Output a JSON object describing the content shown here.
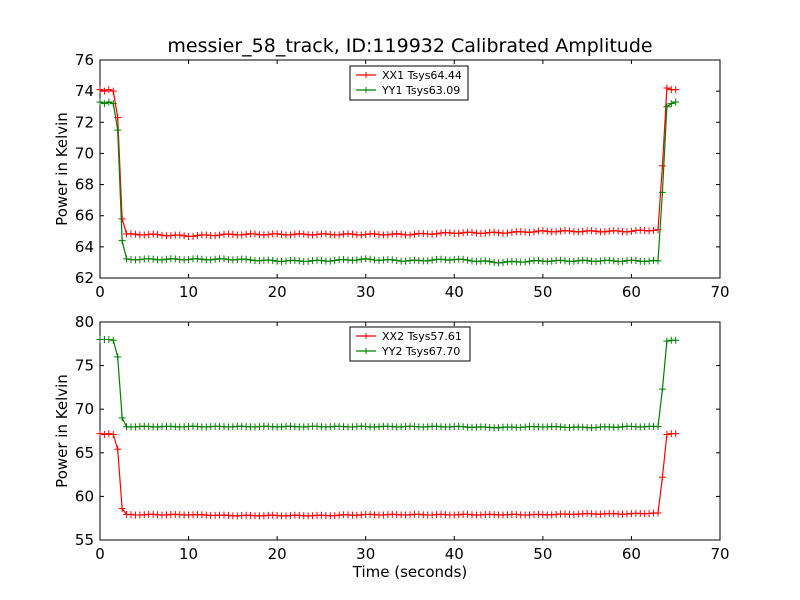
{
  "title": "messier_58_track, ID:119932 Calibrated Amplitude",
  "chart_data": [
    {
      "type": "line",
      "ylabel": "Power in Kelvin",
      "xlabel": "",
      "xlim": [
        0,
        70
      ],
      "ylim": [
        62,
        76
      ],
      "x_ticks": [
        "0",
        "10",
        "20",
        "30",
        "40",
        "50",
        "60",
        "70"
      ],
      "y_ticks": [
        "62",
        "64",
        "66",
        "68",
        "70",
        "72",
        "74",
        "76"
      ],
      "legend_position": "top-center",
      "series": [
        {
          "name": "XX1 Tsys64.44",
          "color": "#ff0000",
          "x": [
            0,
            0.5,
            1,
            1.5,
            2,
            2.5,
            3,
            5,
            10,
            15,
            20,
            25,
            30,
            35,
            40,
            45,
            50,
            55,
            60,
            63,
            63.5,
            64,
            64.5,
            65
          ],
          "y": [
            74.1,
            74.0,
            74.1,
            74.0,
            72.3,
            65.8,
            64.8,
            64.8,
            64.7,
            64.8,
            64.8,
            64.8,
            64.8,
            64.8,
            64.9,
            64.9,
            65.0,
            65.0,
            65.0,
            65.1,
            69.2,
            74.2,
            74.1,
            74.1
          ]
        },
        {
          "name": "YY1 Tsys63.09",
          "color": "#008000",
          "x": [
            0,
            0.5,
            1,
            1.5,
            2,
            2.5,
            3,
            5,
            10,
            15,
            20,
            25,
            30,
            35,
            40,
            45,
            50,
            55,
            60,
            63,
            63.5,
            64,
            64.5,
            65
          ],
          "y": [
            73.3,
            73.2,
            73.3,
            73.2,
            71.5,
            64.4,
            63.2,
            63.2,
            63.2,
            63.2,
            63.1,
            63.1,
            63.2,
            63.1,
            63.2,
            63.0,
            63.1,
            63.1,
            63.1,
            63.1,
            67.5,
            73.0,
            73.2,
            73.3
          ]
        }
      ]
    },
    {
      "type": "line",
      "ylabel": "Power in Kelvin",
      "xlabel": "Time (seconds)",
      "xlim": [
        0,
        70
      ],
      "ylim": [
        55,
        80
      ],
      "x_ticks": [
        "0",
        "10",
        "20",
        "30",
        "40",
        "50",
        "60",
        "70"
      ],
      "y_ticks": [
        "55",
        "60",
        "65",
        "70",
        "75",
        "80"
      ],
      "legend_position": "top-center",
      "series": [
        {
          "name": "XX2 Tsys57.61",
          "color": "#ff0000",
          "x": [
            0,
            0.5,
            1,
            1.5,
            2,
            2.5,
            3,
            5,
            10,
            15,
            20,
            25,
            30,
            35,
            40,
            45,
            50,
            55,
            60,
            63,
            63.5,
            64,
            64.5,
            65
          ],
          "y": [
            67.2,
            67.1,
            67.2,
            67.1,
            65.4,
            58.6,
            57.9,
            57.9,
            57.9,
            57.8,
            57.8,
            57.8,
            57.9,
            57.9,
            57.9,
            57.9,
            57.9,
            58.0,
            58.0,
            58.1,
            62.2,
            67.1,
            67.2,
            67.2
          ]
        },
        {
          "name": "YY2 Tsys67.70",
          "color": "#008000",
          "x": [
            0,
            0.5,
            1,
            1.5,
            2,
            2.5,
            3,
            5,
            10,
            15,
            20,
            25,
            30,
            35,
            40,
            45,
            50,
            55,
            60,
            63,
            63.5,
            64,
            64.5,
            65
          ],
          "y": [
            78.0,
            78.0,
            78.0,
            77.9,
            76.0,
            69.0,
            68.0,
            68.0,
            68.0,
            68.0,
            68.0,
            68.0,
            68.0,
            68.0,
            68.0,
            67.9,
            68.0,
            67.9,
            68.0,
            68.0,
            72.3,
            77.8,
            77.9,
            77.9
          ]
        }
      ]
    }
  ]
}
